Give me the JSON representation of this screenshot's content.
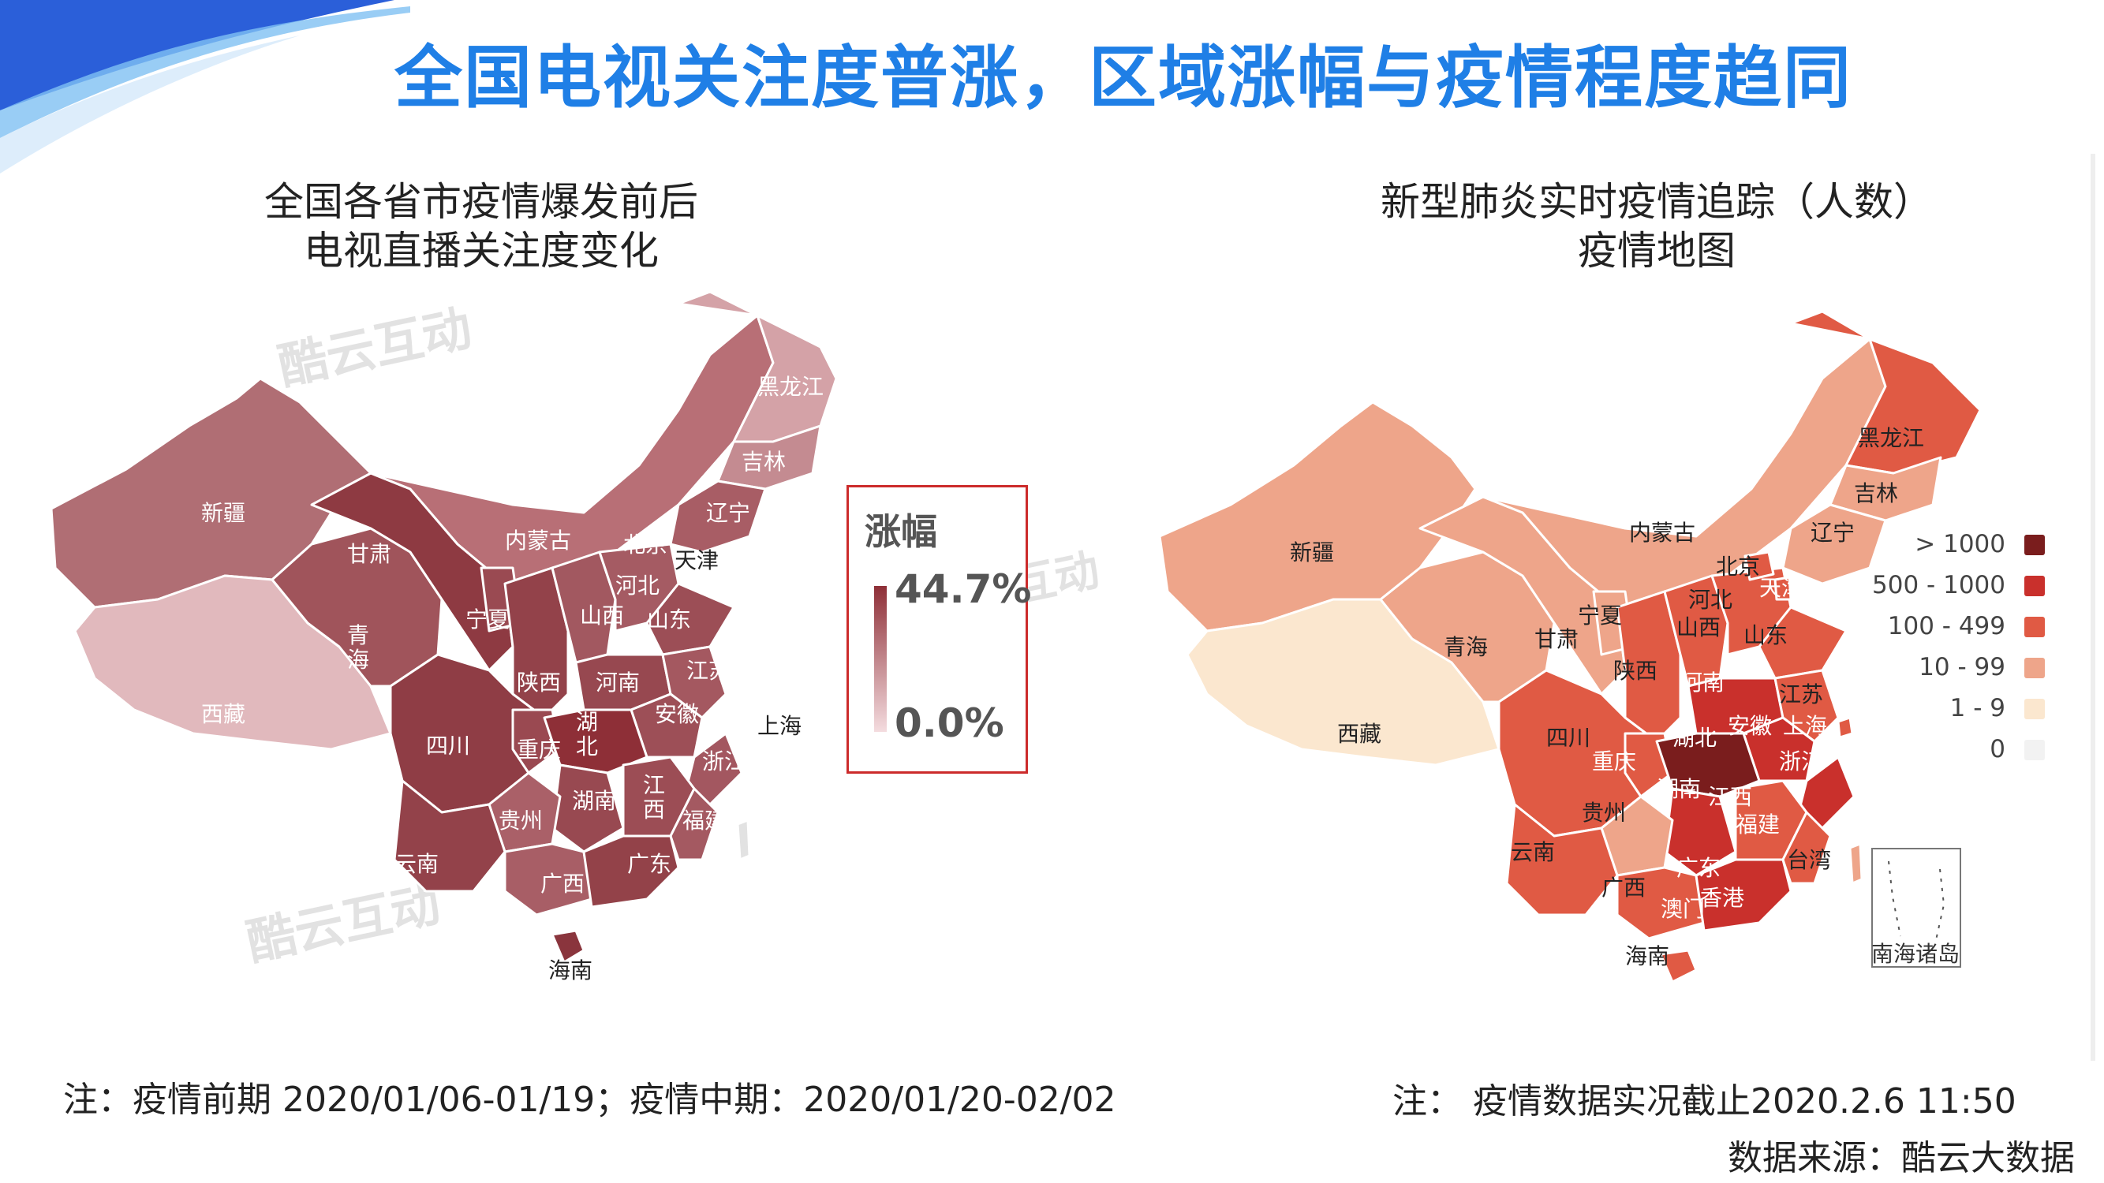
{
  "title": "全国电视关注度普涨，区域涨幅与疫情程度趋同",
  "left_panel": {
    "title_line1": "全国各省市疫情爆发前后",
    "title_line2": "电视直播关注度变化",
    "watermark": "酷云互动",
    "legend": {
      "title": "涨幅",
      "max": "44.7%",
      "min": "0.0%"
    },
    "colors": {
      "gradient_high": "#8e2f37",
      "gradient_low": "#f4dcdf",
      "legend_border": "#cc2b2b"
    },
    "labels": {
      "xinjiang": "新疆",
      "xizang": "西藏",
      "qinghai": "青\n海",
      "gansu": "甘肃",
      "neimenggu": "内蒙古",
      "ningxia": "宁夏",
      "heilongjiang": "黑龙江",
      "jilin": "吉林",
      "liaoning": "辽宁",
      "beijing": "北京",
      "tianjin": "天津",
      "hebei": "河北",
      "shanxi": "山西",
      "shandong": "山东",
      "shaanxi": "陕西",
      "henan": "河南",
      "jiangsu": "江苏",
      "anhui": "安徽",
      "shanghai": "上海",
      "hubei": "湖\n北",
      "sichuan": "四川",
      "chongqing": "重庆",
      "zhejiang": "浙江",
      "hunan": "湖南",
      "jiangxi": "江\n西",
      "guizhou": "贵州",
      "yunnan": "云南",
      "guangxi": "广西",
      "guangdong": "广东",
      "fujian": "福建",
      "hainan": "海南"
    }
  },
  "right_panel": {
    "title_line1": "新型肺炎实时疫情追踪（人数）",
    "title_line2": "疫情地图",
    "legend": [
      {
        "label": "> 1000",
        "color": "#7a1d1d"
      },
      {
        "label": "500 - 1000",
        "color": "#c9302c"
      },
      {
        "label": "100 - 499",
        "color": "#e05a44"
      },
      {
        "label": "10 - 99",
        "color": "#eea58a"
      },
      {
        "label": "1 - 9",
        "color": "#fbe7cf"
      },
      {
        "label": "0",
        "color": "#f2f2f2"
      }
    ],
    "inset_label": "南海诸岛",
    "labels": {
      "xinjiang": "新疆",
      "xizang": "西藏",
      "qinghai": "青海",
      "gansu": "甘肃",
      "neimenggu": "内蒙古",
      "ningxia": "宁夏",
      "heilongjiang": "黑龙江",
      "jilin": "吉林",
      "liaoning": "辽宁",
      "beijing": "北京",
      "tianjin": "天津",
      "hebei": "河北",
      "shanxi": "山西",
      "shandong": "山东",
      "shaanxi": "陕西",
      "henan": "河南",
      "jiangsu": "江苏",
      "anhui": "安徽",
      "shanghai": "上海",
      "hubei": "湖北",
      "sichuan": "四川",
      "chongqing": "重庆",
      "zhejiang": "浙江",
      "hunan": "湖南",
      "jiangxi": "江西",
      "guizhou": "贵州",
      "yunnan": "云南",
      "guangxi": "广西",
      "guangdong": "广东",
      "fujian": "福建",
      "hainan": "海南",
      "taiwan": "台湾",
      "hongkong": "香港",
      "macau": "澳门"
    }
  },
  "notes": {
    "left": "注：疫情前期 2020/01/06-01/19；疫情中期：2020/01/20-02/02",
    "right": "注：  疫情数据实况截止2020.2.6 11:50",
    "source": "数据来源：酷云大数据"
  }
}
